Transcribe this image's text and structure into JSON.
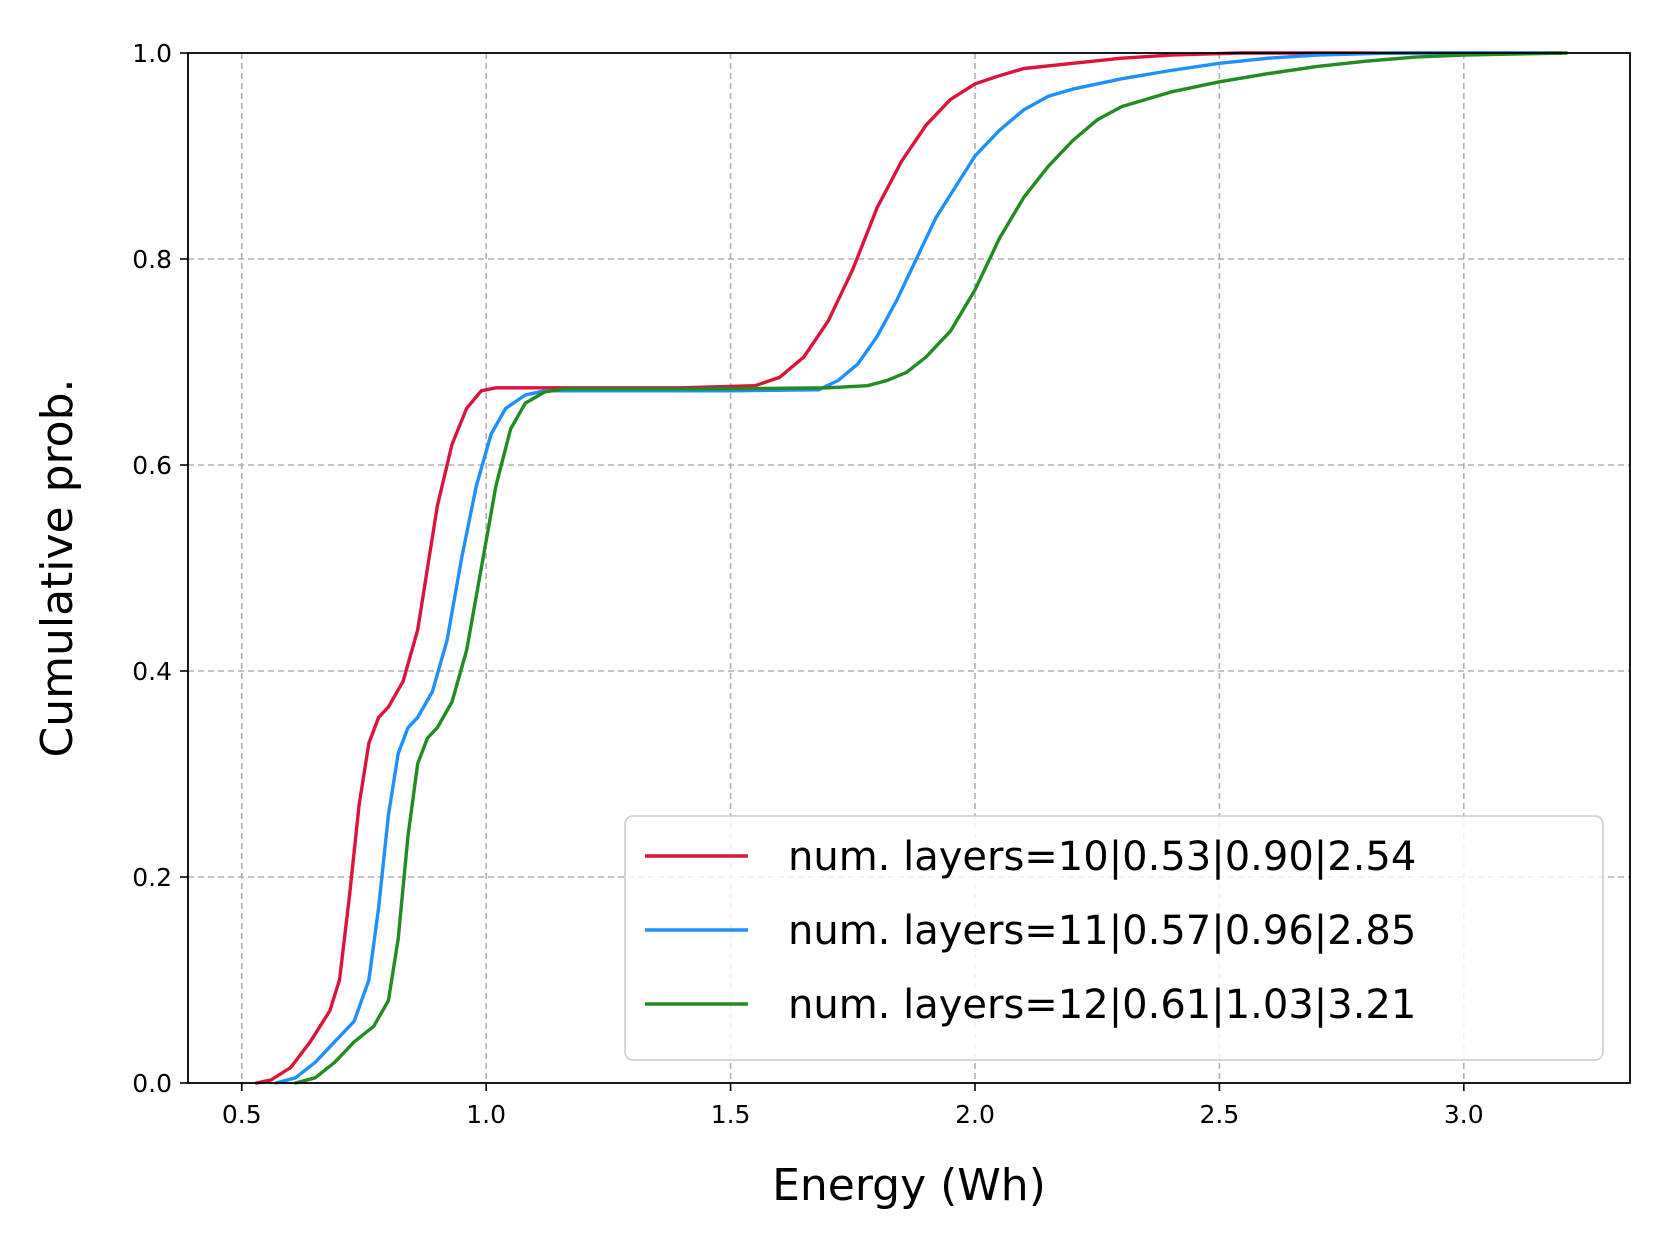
{
  "chart_data": {
    "type": "line",
    "title": "",
    "xlabel": "Energy (Wh)",
    "ylabel": "Cumulative prob.",
    "xlim": [
      0.39,
      3.34
    ],
    "ylim": [
      0.0,
      1.0
    ],
    "grid": true,
    "legend_position": "lower-right",
    "x_ticks": [
      0.5,
      1.0,
      1.5,
      2.0,
      2.5,
      3.0
    ],
    "x_tick_labels": [
      "0.5",
      "1.0",
      "1.5",
      "2.0",
      "2.5",
      "3.0"
    ],
    "y_ticks": [
      0.0,
      0.2,
      0.4,
      0.6,
      0.8,
      1.0
    ],
    "y_tick_labels": [
      "0.0",
      "0.2",
      "0.4",
      "0.6",
      "0.8",
      "1.0"
    ],
    "series": [
      {
        "name": "num. layers=10|0.53|0.90|2.54",
        "color": "#dc143c",
        "x": [
          0.53,
          0.56,
          0.6,
          0.64,
          0.68,
          0.7,
          0.72,
          0.74,
          0.76,
          0.78,
          0.8,
          0.83,
          0.86,
          0.88,
          0.9,
          0.93,
          0.96,
          0.99,
          1.02,
          1.05,
          1.2,
          1.4,
          1.55,
          1.6,
          1.65,
          1.7,
          1.75,
          1.8,
          1.85,
          1.9,
          1.95,
          2.0,
          2.05,
          2.1,
          2.2,
          2.3,
          2.4,
          2.54,
          2.7,
          3.0,
          3.2
        ],
        "y": [
          0.0,
          0.003,
          0.015,
          0.04,
          0.07,
          0.1,
          0.18,
          0.27,
          0.33,
          0.355,
          0.365,
          0.39,
          0.44,
          0.5,
          0.56,
          0.62,
          0.655,
          0.672,
          0.675,
          0.675,
          0.675,
          0.675,
          0.677,
          0.685,
          0.705,
          0.74,
          0.79,
          0.85,
          0.895,
          0.93,
          0.955,
          0.97,
          0.978,
          0.985,
          0.99,
          0.995,
          0.998,
          1.0,
          1.0,
          1.0,
          1.0
        ]
      },
      {
        "name": "num. layers=11|0.57|0.96|2.85",
        "color": "#1e90ff",
        "x": [
          0.57,
          0.61,
          0.65,
          0.69,
          0.73,
          0.76,
          0.78,
          0.8,
          0.82,
          0.84,
          0.86,
          0.89,
          0.92,
          0.95,
          0.98,
          1.01,
          1.04,
          1.08,
          1.12,
          1.3,
          1.5,
          1.68,
          1.72,
          1.76,
          1.8,
          1.84,
          1.88,
          1.92,
          1.96,
          2.0,
          2.05,
          2.1,
          2.15,
          2.2,
          2.3,
          2.4,
          2.5,
          2.6,
          2.7,
          2.85,
          3.0,
          3.2
        ],
        "y": [
          0.0,
          0.005,
          0.02,
          0.04,
          0.06,
          0.1,
          0.17,
          0.26,
          0.32,
          0.345,
          0.355,
          0.38,
          0.43,
          0.51,
          0.58,
          0.63,
          0.655,
          0.668,
          0.672,
          0.672,
          0.672,
          0.673,
          0.682,
          0.698,
          0.725,
          0.76,
          0.8,
          0.84,
          0.87,
          0.9,
          0.925,
          0.945,
          0.958,
          0.965,
          0.975,
          0.983,
          0.99,
          0.995,
          0.998,
          1.0,
          1.0,
          1.0
        ]
      },
      {
        "name": "num. layers=12|0.61|1.03|3.21",
        "color": "#228b22",
        "x": [
          0.61,
          0.65,
          0.69,
          0.73,
          0.77,
          0.8,
          0.82,
          0.84,
          0.86,
          0.88,
          0.9,
          0.93,
          0.96,
          0.99,
          1.02,
          1.05,
          1.08,
          1.12,
          1.16,
          1.3,
          1.5,
          1.7,
          1.78,
          1.82,
          1.86,
          1.9,
          1.95,
          2.0,
          2.05,
          2.1,
          2.15,
          2.2,
          2.25,
          2.3,
          2.35,
          2.4,
          2.5,
          2.6,
          2.7,
          2.8,
          2.9,
          3.0,
          3.1,
          3.21
        ],
        "y": [
          0.0,
          0.005,
          0.02,
          0.04,
          0.055,
          0.08,
          0.14,
          0.24,
          0.31,
          0.335,
          0.345,
          0.37,
          0.42,
          0.5,
          0.58,
          0.635,
          0.66,
          0.671,
          0.674,
          0.674,
          0.674,
          0.675,
          0.677,
          0.682,
          0.69,
          0.705,
          0.73,
          0.77,
          0.82,
          0.86,
          0.89,
          0.915,
          0.935,
          0.948,
          0.955,
          0.962,
          0.972,
          0.98,
          0.987,
          0.992,
          0.996,
          0.998,
          0.999,
          1.0
        ]
      }
    ]
  }
}
